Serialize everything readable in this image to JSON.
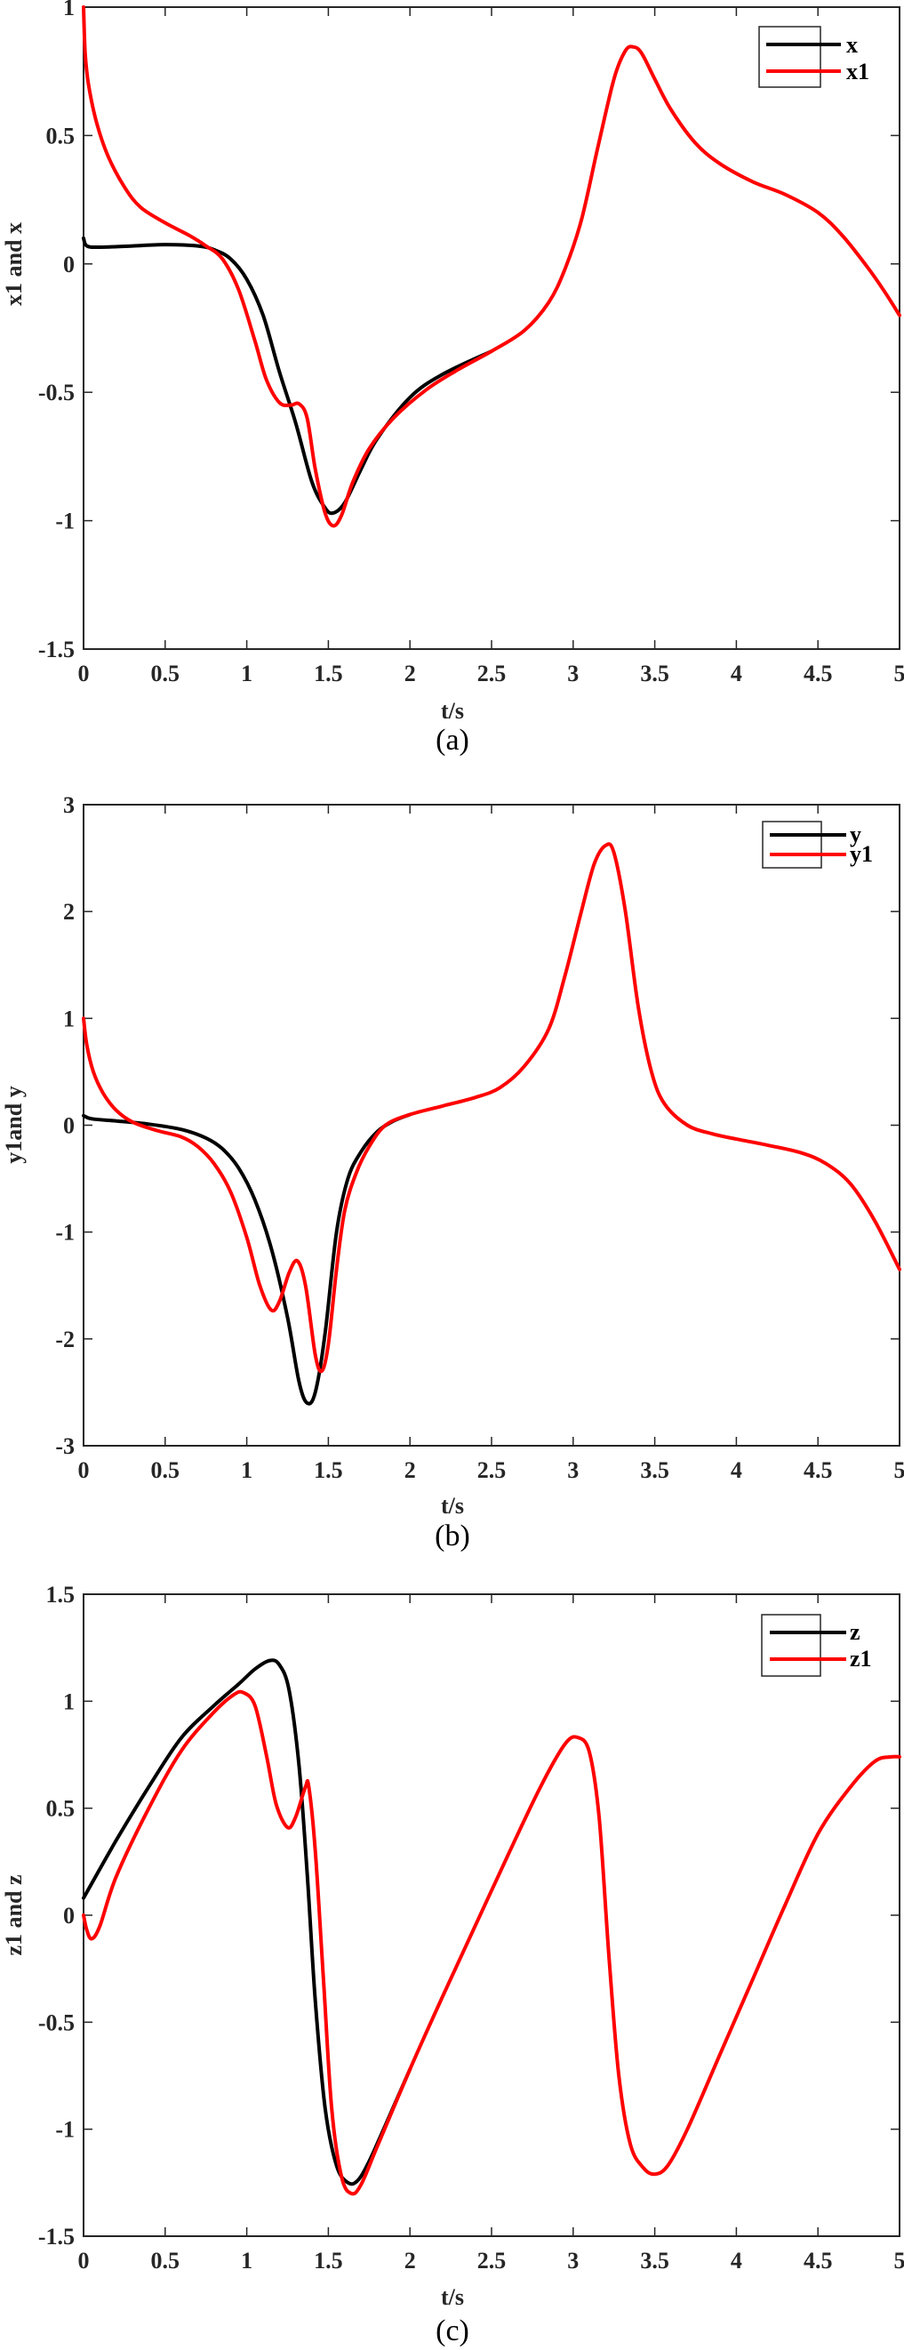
{
  "chart_data": [
    {
      "type": "line",
      "panel": "(a)",
      "title": "",
      "xlabel": "t/s",
      "ylabel": "x1 and x",
      "xlim": [
        0,
        5
      ],
      "ylim": [
        -1.5,
        1
      ],
      "xticks": [
        "0",
        "0.5",
        "1",
        "1.5",
        "2",
        "2.5",
        "3",
        "3.5",
        "4",
        "4.5",
        "5"
      ],
      "yticks": [
        "-1.5",
        "-1",
        "-0.5",
        "0",
        "0.5",
        "1"
      ],
      "grid": false,
      "legend_position": "upper right",
      "series": [
        {
          "name": "x",
          "color": "#000000",
          "points": [
            [
              0,
              0.1
            ],
            [
              0.02,
              0.07
            ],
            [
              0.1,
              0.065
            ],
            [
              0.3,
              0.07
            ],
            [
              0.5,
              0.075
            ],
            [
              0.7,
              0.07
            ],
            [
              0.8,
              0.055
            ],
            [
              0.9,
              0.02
            ],
            [
              1.0,
              -0.06
            ],
            [
              1.1,
              -0.2
            ],
            [
              1.2,
              -0.42
            ],
            [
              1.3,
              -0.62
            ],
            [
              1.4,
              -0.85
            ],
            [
              1.48,
              -0.95
            ],
            [
              1.53,
              -0.97
            ],
            [
              1.6,
              -0.93
            ],
            [
              1.7,
              -0.8
            ],
            [
              1.8,
              -0.68
            ],
            [
              2.0,
              -0.52
            ],
            [
              2.2,
              -0.43
            ],
            [
              2.5,
              -0.34
            ]
          ]
        },
        {
          "name": "x1",
          "color": "#ff0000",
          "points": [
            [
              0,
              1.0
            ],
            [
              0.01,
              0.82
            ],
            [
              0.03,
              0.7
            ],
            [
              0.08,
              0.55
            ],
            [
              0.15,
              0.42
            ],
            [
              0.25,
              0.3
            ],
            [
              0.35,
              0.22
            ],
            [
              0.5,
              0.16
            ],
            [
              0.65,
              0.11
            ],
            [
              0.75,
              0.07
            ],
            [
              0.85,
              0.02
            ],
            [
              0.95,
              -0.1
            ],
            [
              1.05,
              -0.3
            ],
            [
              1.12,
              -0.45
            ],
            [
              1.2,
              -0.54
            ],
            [
              1.27,
              -0.55
            ],
            [
              1.32,
              -0.545
            ],
            [
              1.37,
              -0.6
            ],
            [
              1.42,
              -0.8
            ],
            [
              1.48,
              -0.97
            ],
            [
              1.53,
              -1.02
            ],
            [
              1.58,
              -0.98
            ],
            [
              1.65,
              -0.85
            ],
            [
              1.75,
              -0.72
            ],
            [
              1.9,
              -0.6
            ],
            [
              2.1,
              -0.49
            ],
            [
              2.3,
              -0.41
            ],
            [
              2.5,
              -0.34
            ],
            [
              2.7,
              -0.26
            ],
            [
              2.85,
              -0.15
            ],
            [
              2.95,
              -0.02
            ],
            [
              3.05,
              0.17
            ],
            [
              3.15,
              0.45
            ],
            [
              3.25,
              0.72
            ],
            [
              3.32,
              0.83
            ],
            [
              3.37,
              0.845
            ],
            [
              3.42,
              0.82
            ],
            [
              3.5,
              0.72
            ],
            [
              3.6,
              0.6
            ],
            [
              3.75,
              0.47
            ],
            [
              3.9,
              0.39
            ],
            [
              4.1,
              0.32
            ],
            [
              4.3,
              0.27
            ],
            [
              4.5,
              0.2
            ],
            [
              4.65,
              0.11
            ],
            [
              4.8,
              -0.01
            ],
            [
              4.9,
              -0.1
            ],
            [
              5.0,
              -0.2
            ]
          ]
        }
      ]
    },
    {
      "type": "line",
      "panel": "(b)",
      "title": "",
      "xlabel": "t/s",
      "ylabel": "y1and y",
      "xlim": [
        0,
        5
      ],
      "ylim": [
        -3,
        3
      ],
      "xticks": [
        "0",
        "0.5",
        "1",
        "1.5",
        "2",
        "2.5",
        "3",
        "3.5",
        "4",
        "4.5",
        "5"
      ],
      "yticks": [
        "-3",
        "-2",
        "-1",
        "0",
        "1",
        "2",
        "3"
      ],
      "grid": false,
      "legend_position": "upper right",
      "series": [
        {
          "name": "y",
          "color": "#000000",
          "points": [
            [
              0,
              0.09
            ],
            [
              0.05,
              0.06
            ],
            [
              0.2,
              0.04
            ],
            [
              0.4,
              0.01
            ],
            [
              0.6,
              -0.04
            ],
            [
              0.75,
              -0.12
            ],
            [
              0.85,
              -0.22
            ],
            [
              0.95,
              -0.4
            ],
            [
              1.05,
              -0.7
            ],
            [
              1.15,
              -1.15
            ],
            [
              1.25,
              -1.8
            ],
            [
              1.32,
              -2.4
            ],
            [
              1.37,
              -2.6
            ],
            [
              1.42,
              -2.5
            ],
            [
              1.48,
              -1.95
            ],
            [
              1.55,
              -1.0
            ],
            [
              1.62,
              -0.5
            ],
            [
              1.7,
              -0.25
            ],
            [
              1.8,
              -0.06
            ],
            [
              1.9,
              0.04
            ],
            [
              2.0,
              0.1
            ]
          ]
        },
        {
          "name": "y1",
          "color": "#ff0000",
          "points": [
            [
              0,
              1.0
            ],
            [
              0.02,
              0.75
            ],
            [
              0.06,
              0.5
            ],
            [
              0.12,
              0.3
            ],
            [
              0.2,
              0.14
            ],
            [
              0.3,
              0.03
            ],
            [
              0.45,
              -0.05
            ],
            [
              0.6,
              -0.11
            ],
            [
              0.7,
              -0.2
            ],
            [
              0.8,
              -0.36
            ],
            [
              0.9,
              -0.62
            ],
            [
              1.0,
              -1.05
            ],
            [
              1.08,
              -1.5
            ],
            [
              1.15,
              -1.73
            ],
            [
              1.2,
              -1.65
            ],
            [
              1.26,
              -1.38
            ],
            [
              1.31,
              -1.27
            ],
            [
              1.36,
              -1.5
            ],
            [
              1.42,
              -2.15
            ],
            [
              1.46,
              -2.3
            ],
            [
              1.5,
              -2.05
            ],
            [
              1.55,
              -1.35
            ],
            [
              1.6,
              -0.8
            ],
            [
              1.67,
              -0.45
            ],
            [
              1.75,
              -0.2
            ],
            [
              1.85,
              0.0
            ],
            [
              2.0,
              0.1
            ],
            [
              2.2,
              0.18
            ],
            [
              2.4,
              0.26
            ],
            [
              2.55,
              0.35
            ],
            [
              2.7,
              0.55
            ],
            [
              2.85,
              0.9
            ],
            [
              2.95,
              1.4
            ],
            [
              3.05,
              2.0
            ],
            [
              3.13,
              2.45
            ],
            [
              3.2,
              2.62
            ],
            [
              3.25,
              2.55
            ],
            [
              3.32,
              2.0
            ],
            [
              3.4,
              1.1
            ],
            [
              3.48,
              0.5
            ],
            [
              3.56,
              0.2
            ],
            [
              3.7,
              0.0
            ],
            [
              3.85,
              -0.08
            ],
            [
              4.0,
              -0.13
            ],
            [
              4.2,
              -0.19
            ],
            [
              4.4,
              -0.26
            ],
            [
              4.55,
              -0.36
            ],
            [
              4.7,
              -0.55
            ],
            [
              4.85,
              -0.9
            ],
            [
              5.0,
              -1.35
            ]
          ]
        }
      ]
    },
    {
      "type": "line",
      "panel": "(c)",
      "title": "",
      "xlabel": "t/s",
      "ylabel": "z1 and z",
      "xlim": [
        0,
        5
      ],
      "ylim": [
        -1.5,
        1.5
      ],
      "xticks": [
        "0",
        "0.5",
        "1",
        "1.5",
        "2",
        "2.5",
        "3",
        "3.5",
        "4",
        "4.5",
        "5"
      ],
      "yticks": [
        "-1.5",
        "-1",
        "-0.5",
        "0",
        "0.5",
        "1",
        "1.5"
      ],
      "grid": false,
      "legend_position": "upper right",
      "series": [
        {
          "name": "z",
          "color": "#000000",
          "points": [
            [
              0,
              0.08
            ],
            [
              0.2,
              0.35
            ],
            [
              0.4,
              0.6
            ],
            [
              0.6,
              0.83
            ],
            [
              0.8,
              0.98
            ],
            [
              0.95,
              1.08
            ],
            [
              1.05,
              1.15
            ],
            [
              1.14,
              1.19
            ],
            [
              1.2,
              1.17
            ],
            [
              1.26,
              1.05
            ],
            [
              1.32,
              0.7
            ],
            [
              1.37,
              0.2
            ],
            [
              1.42,
              -0.4
            ],
            [
              1.48,
              -0.9
            ],
            [
              1.55,
              -1.17
            ],
            [
              1.62,
              -1.25
            ],
            [
              1.68,
              -1.24
            ],
            [
              1.75,
              -1.15
            ],
            [
              1.85,
              -0.98
            ],
            [
              2.0,
              -0.72
            ]
          ]
        },
        {
          "name": "z1",
          "color": "#ff0000",
          "points": [
            [
              0,
              0.0
            ],
            [
              0.02,
              -0.07
            ],
            [
              0.05,
              -0.11
            ],
            [
              0.1,
              -0.05
            ],
            [
              0.2,
              0.18
            ],
            [
              0.4,
              0.5
            ],
            [
              0.6,
              0.77
            ],
            [
              0.8,
              0.95
            ],
            [
              0.92,
              1.03
            ],
            [
              0.98,
              1.04
            ],
            [
              1.05,
              0.98
            ],
            [
              1.12,
              0.75
            ],
            [
              1.18,
              0.52
            ],
            [
              1.25,
              0.41
            ],
            [
              1.3,
              0.46
            ],
            [
              1.36,
              0.6
            ],
            [
              1.38,
              0.6
            ],
            [
              1.42,
              0.3
            ],
            [
              1.47,
              -0.3
            ],
            [
              1.52,
              -0.9
            ],
            [
              1.58,
              -1.22
            ],
            [
              1.64,
              -1.3
            ],
            [
              1.7,
              -1.26
            ],
            [
              1.8,
              -1.08
            ],
            [
              2.0,
              -0.72
            ],
            [
              2.2,
              -0.38
            ],
            [
              2.4,
              -0.05
            ],
            [
              2.6,
              0.28
            ],
            [
              2.8,
              0.6
            ],
            [
              2.95,
              0.8
            ],
            [
              3.03,
              0.83
            ],
            [
              3.1,
              0.76
            ],
            [
              3.16,
              0.45
            ],
            [
              3.22,
              -0.2
            ],
            [
              3.28,
              -0.75
            ],
            [
              3.35,
              -1.07
            ],
            [
              3.43,
              -1.18
            ],
            [
              3.5,
              -1.21
            ],
            [
              3.58,
              -1.17
            ],
            [
              3.7,
              -1.0
            ],
            [
              3.9,
              -0.65
            ],
            [
              4.1,
              -0.3
            ],
            [
              4.3,
              0.05
            ],
            [
              4.5,
              0.38
            ],
            [
              4.7,
              0.6
            ],
            [
              4.85,
              0.72
            ],
            [
              4.95,
              0.74
            ],
            [
              5.0,
              0.74
            ]
          ]
        }
      ]
    }
  ],
  "panels": [
    {
      "caption": "(a)",
      "xlabel": "t/s",
      "ylabel": "x1 and x",
      "legend": [
        "x",
        "x1"
      ]
    },
    {
      "caption": "(b)",
      "xlabel": "t/s",
      "ylabel": "y1and y",
      "legend": [
        "y",
        "y1"
      ]
    },
    {
      "caption": "(c)",
      "xlabel": "t/s",
      "ylabel": "z1 and z",
      "legend": [
        "z",
        "z1"
      ]
    }
  ]
}
